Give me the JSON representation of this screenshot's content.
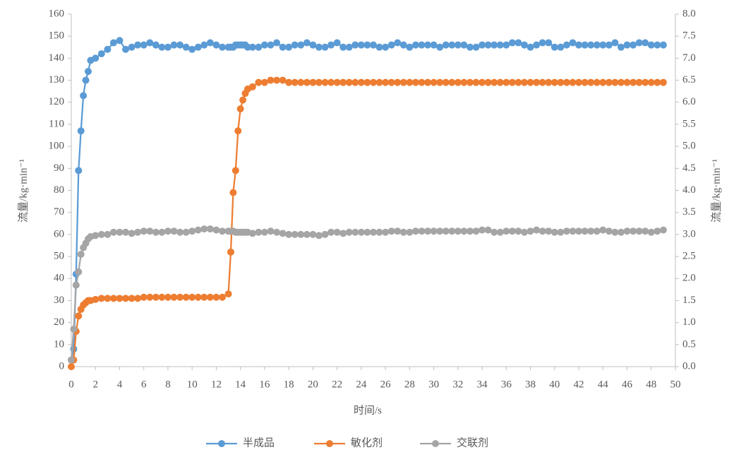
{
  "chart_data": {
    "type": "line",
    "xlabel": "时间/s",
    "ylabel": "流量/kg·min⁻¹",
    "y2label": "流量/kg·min⁻¹",
    "x": [
      0,
      0.2,
      0.4,
      0.6,
      0.8,
      1,
      1.2,
      1.4,
      1.6,
      2,
      2.5,
      3,
      3.5,
      4,
      4.5,
      5,
      5.5,
      6,
      6.5,
      7,
      7.5,
      8,
      8.5,
      9,
      9.5,
      10,
      10.5,
      11,
      11.5,
      12,
      12.5,
      13,
      13.2,
      13.4,
      13.6,
      13.8,
      14,
      14.2,
      14.4,
      14.6,
      15,
      15.5,
      16,
      16.5,
      17,
      17.5,
      18,
      18.5,
      19,
      19.5,
      20,
      20.5,
      21,
      21.5,
      22,
      22.5,
      23,
      23.5,
      24,
      24.5,
      25,
      25.5,
      26,
      26.5,
      27,
      27.5,
      28,
      28.5,
      29,
      29.5,
      30,
      30.5,
      31,
      31.5,
      32,
      32.5,
      33,
      33.5,
      34,
      34.5,
      35,
      35.5,
      36,
      36.5,
      37,
      37.5,
      38,
      38.5,
      39,
      39.5,
      40,
      40.5,
      41,
      41.5,
      42,
      42.5,
      43,
      43.5,
      44,
      44.5,
      45,
      45.5,
      46,
      46.5,
      47,
      47.5,
      48,
      48.5,
      49
    ],
    "series": [
      {
        "name": "半成品",
        "color": "#5b9bd5",
        "values": [
          3,
          8,
          42,
          89,
          107,
          123,
          130,
          134,
          139,
          140,
          142,
          144,
          147,
          148,
          144,
          145,
          146,
          146,
          147,
          146,
          145,
          145,
          146,
          146,
          145,
          144,
          145,
          146,
          147,
          146,
          145,
          145,
          145,
          145,
          146,
          146,
          146,
          146,
          146,
          145,
          145,
          145,
          146,
          146,
          147,
          145,
          145,
          146,
          146,
          147,
          146,
          145,
          145,
          146,
          147,
          145,
          145,
          146,
          146,
          146,
          146,
          145,
          145,
          146,
          147,
          146,
          145,
          146,
          146,
          146,
          146,
          145,
          146,
          146,
          146,
          146,
          145,
          145,
          146,
          146,
          146,
          146,
          146,
          147,
          147,
          146,
          145,
          146,
          147,
          147,
          145,
          145,
          146,
          147,
          146,
          146,
          146,
          146,
          146,
          146,
          147,
          145,
          146,
          146,
          147,
          147,
          146,
          146,
          146
        ]
      },
      {
        "name": "敏化剂",
        "color": "#ed7d31",
        "values": [
          0,
          3,
          16,
          23,
          26,
          28,
          29,
          30,
          30,
          30.5,
          31,
          31,
          31,
          31,
          31,
          31,
          31,
          31.5,
          31.5,
          31.5,
          31.5,
          31.5,
          31.5,
          31.5,
          31.5,
          31.5,
          31.5,
          31.5,
          31.5,
          31.5,
          31.5,
          33,
          52,
          79,
          89,
          107,
          117,
          121,
          124,
          126,
          127,
          129,
          129,
          130,
          130,
          130,
          129,
          129,
          129,
          129,
          129,
          129,
          129,
          129,
          129,
          129,
          129,
          129,
          129,
          129,
          129,
          129,
          129,
          129,
          129,
          129,
          129,
          129,
          129,
          129,
          129,
          129,
          129,
          129,
          129,
          129,
          129,
          129,
          129,
          129,
          129,
          129,
          129,
          129,
          129,
          129,
          129,
          129,
          129,
          129,
          129,
          129,
          129,
          129,
          129,
          129,
          129,
          129,
          129,
          129,
          129,
          129,
          129,
          129,
          129,
          129,
          129,
          129,
          129
        ]
      },
      {
        "name": "交联剂",
        "color": "#a5a5a5",
        "values": [
          3,
          17,
          37,
          43,
          51,
          54,
          56,
          58,
          59,
          59.5,
          60,
          60,
          61,
          61,
          61,
          60.5,
          61,
          61.5,
          61.5,
          61,
          61,
          61.5,
          61.5,
          61,
          61,
          61.5,
          62,
          62.5,
          62.5,
          62,
          61.5,
          61.5,
          61.5,
          61.5,
          61,
          61,
          61,
          61,
          61,
          61,
          60.5,
          61,
          61,
          61.5,
          61,
          60.5,
          60,
          60,
          60,
          60,
          60,
          59.5,
          60,
          61,
          61,
          60.5,
          61,
          61,
          61,
          61,
          61,
          61,
          61,
          61.5,
          61.5,
          61,
          61,
          61.5,
          61.5,
          61.5,
          61.5,
          61.5,
          61.5,
          61.5,
          61.5,
          61.5,
          61.5,
          61.5,
          62,
          62,
          61,
          61,
          61.5,
          61.5,
          61.5,
          61,
          61.5,
          62,
          61.5,
          61.5,
          61,
          61,
          61.5,
          61.5,
          61.5,
          61.5,
          61.5,
          61.5,
          62,
          61.5,
          61,
          61,
          61.5,
          61.5,
          61.5,
          61.5,
          61,
          61.5,
          62
        ]
      }
    ],
    "xlim": [
      0,
      50
    ],
    "xticks": [
      0,
      2,
      4,
      6,
      8,
      10,
      12,
      14,
      16,
      18,
      20,
      22,
      24,
      26,
      28,
      30,
      32,
      34,
      36,
      38,
      40,
      42,
      44,
      46,
      48,
      50
    ],
    "ylim": [
      0,
      160
    ],
    "yticks": [
      0,
      10,
      20,
      30,
      40,
      50,
      60,
      70,
      80,
      90,
      100,
      110,
      120,
      130,
      140,
      150,
      160
    ],
    "y2lim": [
      0,
      8
    ],
    "y2ticks": [
      {
        "value": 0,
        "label": "0.0"
      },
      0.5,
      {
        "value": 1,
        "label": "1.0"
      },
      1.5,
      {
        "value": 2,
        "label": "2.0"
      },
      2.5,
      {
        "value": 3,
        "label": "3.0"
      },
      3.5,
      {
        "value": 4,
        "label": "4.0"
      },
      4.5,
      {
        "value": 5,
        "label": "5.0"
      },
      5.5,
      {
        "value": 6,
        "label": "6.0"
      },
      6.5,
      {
        "value": 7,
        "label": "7.0"
      },
      7.5,
      {
        "value": 8,
        "label": "8.0"
      }
    ],
    "grid": false,
    "legend": "bottom"
  }
}
